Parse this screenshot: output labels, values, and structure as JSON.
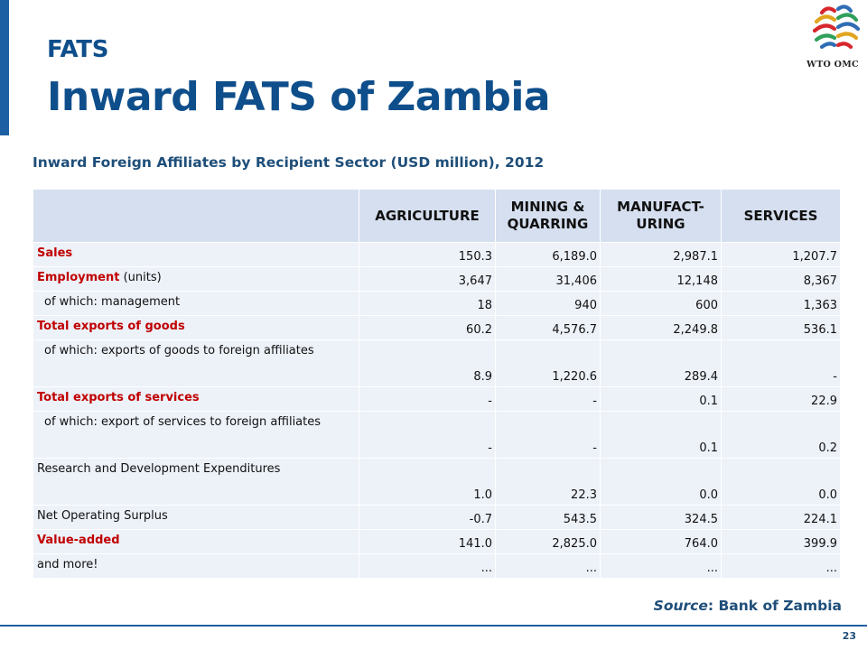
{
  "header": {
    "kicker": "FATS",
    "title": "Inward FATS of Zambia",
    "logo_text": "WTO OMC"
  },
  "subtitle": "Inward Foreign Affiliates by Recipient Sector (USD million), 2012",
  "table": {
    "columns": [
      "",
      "AGRICULTURE",
      "MINING & QUARRING",
      "MANUFACT-URING",
      "SERVICES"
    ],
    "rows": [
      {
        "label": "Sales",
        "values": [
          "150.3",
          "6,189.0",
          "2,987.1",
          "1,207.7"
        ]
      },
      {
        "label": "Employment",
        "label_suffix": " (units)",
        "values": [
          "3,647",
          "31,406",
          "12,148",
          "8,367"
        ]
      },
      {
        "label": "of which: management",
        "values": [
          "18",
          "940",
          "600",
          "1,363"
        ]
      },
      {
        "label": "Total exports of goods",
        "values": [
          "60.2",
          "4,576.7",
          "2,249.8",
          "536.1"
        ]
      },
      {
        "label": "of which: exports of goods to foreign affiliates",
        "values": [
          "8.9",
          "1,220.6",
          "289.4",
          "-"
        ]
      },
      {
        "label": "Total exports of services",
        "values": [
          "-",
          "-",
          "0.1",
          "22.9"
        ]
      },
      {
        "label": "of which: export of services to foreign affiliates",
        "values": [
          "-",
          "-",
          "0.1",
          "0.2"
        ]
      },
      {
        "label": "Research and Development Expenditures",
        "values": [
          "1.0",
          "22.3",
          "0.0",
          "0.0"
        ]
      },
      {
        "label": "Net Operating Surplus",
        "values": [
          "-0.7",
          "543.5",
          "324.5",
          "224.1"
        ]
      },
      {
        "label": "Value-added",
        "values": [
          "141.0",
          "2,825.0",
          "764.0",
          "399.9"
        ]
      },
      {
        "label": "and more!",
        "values": [
          "...",
          "...",
          "...",
          "..."
        ]
      }
    ]
  },
  "source": {
    "label": "Source",
    "text": ": Bank of Zambia"
  },
  "page_number": "23",
  "colors": {
    "title_blue": "#0e4e8b",
    "row_red": "#c00000",
    "header_bg": "#d5dfef",
    "row_bg": "#edf1f8"
  }
}
